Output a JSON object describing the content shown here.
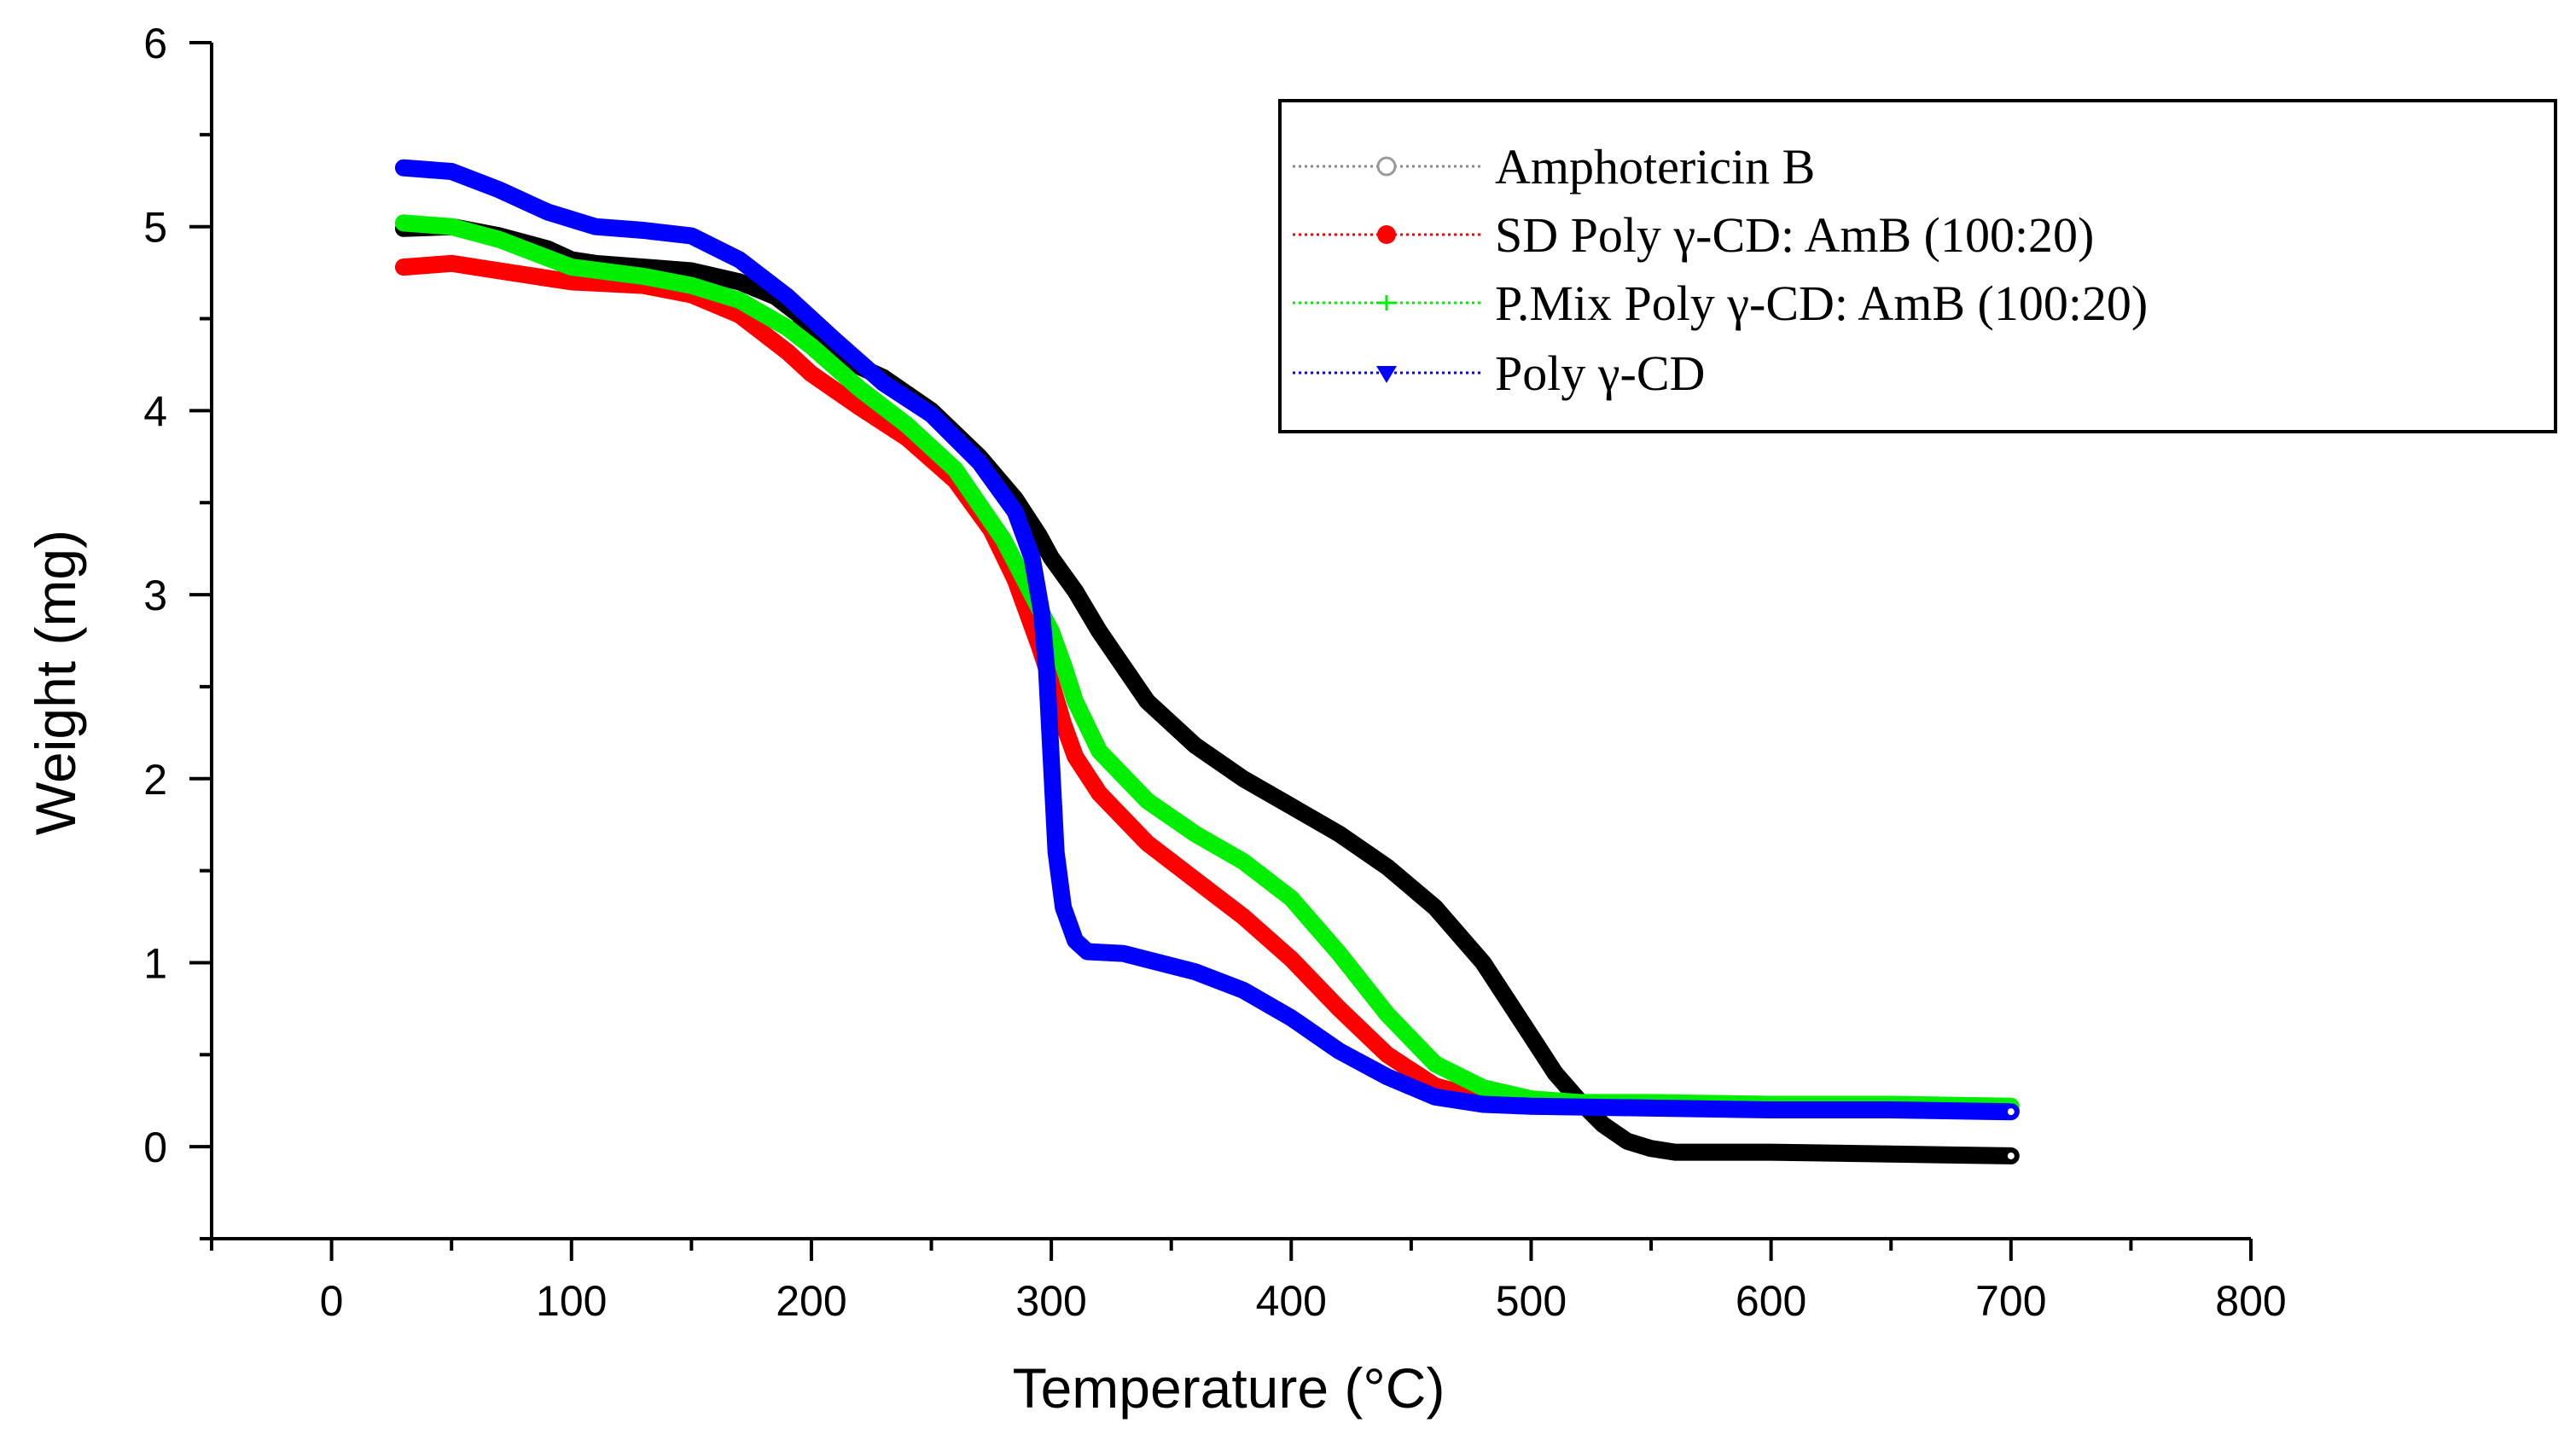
{
  "chart_data": {
    "type": "line",
    "title": "",
    "xlabel": "Temperature (°C)",
    "ylabel": "Weight (mg)",
    "xlim": [
      -50,
      800
    ],
    "ylim": [
      -0.5,
      6
    ],
    "xticks": [
      0,
      100,
      200,
      300,
      400,
      500,
      600,
      700,
      800
    ],
    "yticks": [
      0,
      1,
      2,
      3,
      4,
      5,
      6
    ],
    "grid": false,
    "legend_position": "top-right",
    "series": [
      {
        "name": "Amphotericin B",
        "color": "#000000",
        "marker": "open-circle",
        "x": [
          30,
          50,
          70,
          90,
          100,
          110,
          130,
          150,
          170,
          185,
          195,
          200,
          210,
          230,
          250,
          270,
          285,
          295,
          300,
          310,
          320,
          340,
          360,
          380,
          400,
          420,
          440,
          460,
          480,
          500,
          510,
          520,
          530,
          540,
          550,
          560,
          600,
          650,
          700
        ],
        "y": [
          4.99,
          5.0,
          4.95,
          4.88,
          4.82,
          4.8,
          4.78,
          4.76,
          4.7,
          4.62,
          4.52,
          4.4,
          4.3,
          4.18,
          4.0,
          3.75,
          3.52,
          3.32,
          3.2,
          3.02,
          2.8,
          2.42,
          2.18,
          2.0,
          1.85,
          1.7,
          1.52,
          1.3,
          1.0,
          0.6,
          0.4,
          0.25,
          0.12,
          0.03,
          -0.01,
          -0.03,
          -0.03,
          -0.04,
          -0.05
        ]
      },
      {
        "name": "SD Poly γ-CD: AmB (100:20)",
        "color": "#ff0000",
        "marker": "filled-circle",
        "x": [
          30,
          50,
          70,
          100,
          130,
          150,
          170,
          190,
          200,
          220,
          240,
          260,
          275,
          285,
          295,
          300,
          305,
          310,
          320,
          340,
          360,
          380,
          400,
          420,
          440,
          460,
          480,
          500,
          520,
          550,
          600,
          650,
          700
        ],
        "y": [
          4.78,
          4.8,
          4.76,
          4.7,
          4.68,
          4.63,
          4.52,
          4.32,
          4.2,
          4.02,
          3.85,
          3.62,
          3.35,
          3.08,
          2.72,
          2.52,
          2.3,
          2.12,
          1.92,
          1.65,
          1.45,
          1.25,
          1.02,
          0.75,
          0.5,
          0.33,
          0.26,
          0.24,
          0.23,
          0.22,
          0.22,
          0.21,
          0.2
        ]
      },
      {
        "name": "P.Mix Poly γ-CD: AmB (100:20)",
        "color": "#00ee00",
        "marker": "plus",
        "x": [
          30,
          50,
          70,
          100,
          130,
          150,
          170,
          190,
          200,
          220,
          240,
          260,
          280,
          290,
          300,
          305,
          310,
          320,
          340,
          360,
          380,
          400,
          420,
          440,
          460,
          480,
          500,
          520,
          550,
          600,
          650,
          700
        ],
        "y": [
          5.02,
          5.0,
          4.93,
          4.78,
          4.73,
          4.68,
          4.6,
          4.45,
          4.35,
          4.12,
          3.92,
          3.68,
          3.3,
          3.05,
          2.8,
          2.62,
          2.42,
          2.15,
          1.88,
          1.7,
          1.55,
          1.35,
          1.05,
          0.72,
          0.45,
          0.32,
          0.26,
          0.24,
          0.24,
          0.23,
          0.23,
          0.22
        ]
      },
      {
        "name": "Poly γ-CD",
        "color": "#0000ff",
        "marker": "filled-down-triangle",
        "x": [
          30,
          50,
          70,
          90,
          110,
          130,
          150,
          170,
          190,
          210,
          230,
          250,
          270,
          285,
          292,
          296,
          298,
          300,
          302,
          305,
          310,
          315,
          330,
          360,
          380,
          400,
          420,
          440,
          460,
          480,
          500,
          550,
          600,
          650,
          700
        ],
        "y": [
          5.32,
          5.3,
          5.2,
          5.08,
          5.0,
          4.98,
          4.95,
          4.82,
          4.62,
          4.38,
          4.15,
          3.98,
          3.72,
          3.45,
          3.2,
          2.9,
          2.6,
          2.1,
          1.6,
          1.3,
          1.12,
          1.06,
          1.05,
          0.95,
          0.85,
          0.7,
          0.52,
          0.38,
          0.27,
          0.23,
          0.22,
          0.21,
          0.2,
          0.2,
          0.19
        ]
      }
    ]
  }
}
